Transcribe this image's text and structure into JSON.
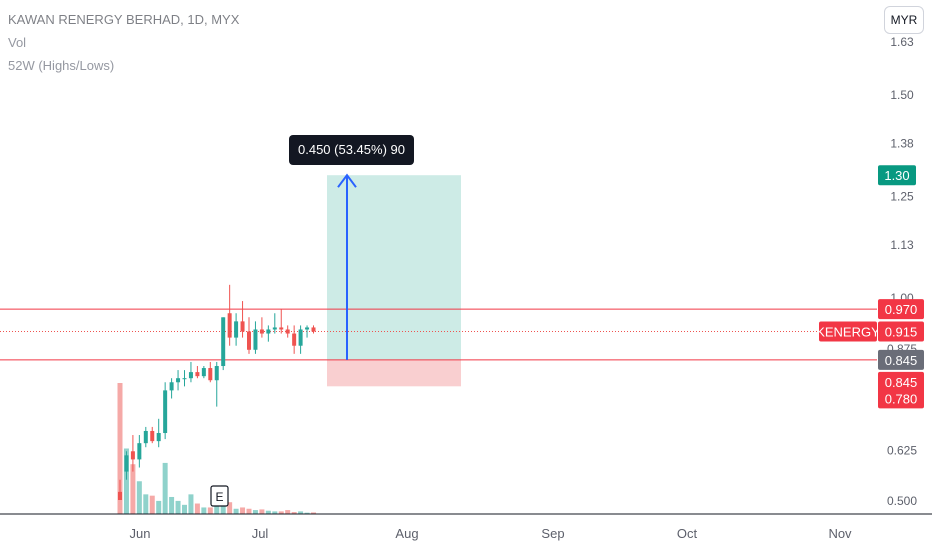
{
  "header": {
    "symbol_line": "KAWAN RENERGY BERHAD, 1D, MYX",
    "volume_label": "Vol",
    "highs_lows_label": "52W (Highs/Lows)"
  },
  "currency_button": "MYR",
  "position_tool": {
    "label": "0.450 (53.45%) 90",
    "entry": 0.845,
    "target": 1.3,
    "stop": 0.78
  },
  "price_labels": {
    "target": "1.30",
    "high_line": "0.970",
    "ticker": "KENERGY",
    "last": "0.915",
    "entry": "0.845",
    "entry_red": "0.845",
    "stop": "0.780"
  },
  "earnings_marker": "E",
  "colors": {
    "up": "#26a69a",
    "down": "#ef5350",
    "line_red": "#f23645",
    "arrow": "#2962ff",
    "target_zone": "#cdebe6",
    "stop_zone": "#f9cfd0"
  },
  "chart_data": {
    "type": "candlestick",
    "y_axis": {
      "ticks": [
        "0.500",
        "0.625",
        "0.750",
        "0.875",
        "1.00",
        "1.13",
        "1.25",
        "1.38",
        "1.50",
        "1.63"
      ],
      "range": [
        0.48,
        1.68
      ]
    },
    "x_axis": {
      "ticks": [
        "Jun",
        "Jul",
        "Aug",
        "Sep",
        "Oct",
        "Nov"
      ]
    },
    "horizontal_lines": [
      0.97,
      0.845
    ],
    "candles": [
      {
        "o": 0.52,
        "h": 0.55,
        "l": 0.5,
        "c": 0.5,
        "v": 1.0
      },
      {
        "o": 0.57,
        "h": 0.62,
        "l": 0.55,
        "c": 0.61,
        "v": 0.5
      },
      {
        "o": 0.62,
        "h": 0.66,
        "l": 0.57,
        "c": 0.6,
        "v": 0.38
      },
      {
        "o": 0.6,
        "h": 0.66,
        "l": 0.58,
        "c": 0.64,
        "v": 0.25
      },
      {
        "o": 0.64,
        "h": 0.68,
        "l": 0.63,
        "c": 0.67,
        "v": 0.15
      },
      {
        "o": 0.67,
        "h": 0.68,
        "l": 0.64,
        "c": 0.645,
        "v": 0.14
      },
      {
        "o": 0.645,
        "h": 0.7,
        "l": 0.63,
        "c": 0.665,
        "v": 0.1
      },
      {
        "o": 0.665,
        "h": 0.79,
        "l": 0.65,
        "c": 0.77,
        "v": 0.39
      },
      {
        "o": 0.77,
        "h": 0.8,
        "l": 0.75,
        "c": 0.79,
        "v": 0.13
      },
      {
        "o": 0.79,
        "h": 0.82,
        "l": 0.77,
        "c": 0.8,
        "v": 0.1
      },
      {
        "o": 0.8,
        "h": 0.82,
        "l": 0.78,
        "c": 0.8,
        "v": 0.07
      },
      {
        "o": 0.8,
        "h": 0.84,
        "l": 0.79,
        "c": 0.815,
        "v": 0.15
      },
      {
        "o": 0.815,
        "h": 0.83,
        "l": 0.8,
        "c": 0.805,
        "v": 0.08
      },
      {
        "o": 0.805,
        "h": 0.83,
        "l": 0.8,
        "c": 0.825,
        "v": 0.05
      },
      {
        "o": 0.825,
        "h": 0.84,
        "l": 0.79,
        "c": 0.795,
        "v": 0.05
      },
      {
        "o": 0.795,
        "h": 0.84,
        "l": 0.73,
        "c": 0.83,
        "v": 0.16
      },
      {
        "o": 0.83,
        "h": 0.95,
        "l": 0.82,
        "c": 0.95,
        "v": 0.12
      },
      {
        "o": 0.96,
        "h": 1.03,
        "l": 0.88,
        "c": 0.9,
        "v": 0.09
      },
      {
        "o": 0.9,
        "h": 0.96,
        "l": 0.88,
        "c": 0.94,
        "v": 0.04
      },
      {
        "o": 0.94,
        "h": 0.99,
        "l": 0.9,
        "c": 0.915,
        "v": 0.05
      },
      {
        "o": 0.915,
        "h": 0.95,
        "l": 0.86,
        "c": 0.87,
        "v": 0.04
      },
      {
        "o": 0.87,
        "h": 0.94,
        "l": 0.86,
        "c": 0.92,
        "v": 0.03
      },
      {
        "o": 0.92,
        "h": 0.95,
        "l": 0.9,
        "c": 0.91,
        "v": 0.035
      },
      {
        "o": 0.91,
        "h": 0.93,
        "l": 0.89,
        "c": 0.92,
        "v": 0.025
      },
      {
        "o": 0.92,
        "h": 0.96,
        "l": 0.91,
        "c": 0.925,
        "v": 0.02
      },
      {
        "o": 0.925,
        "h": 0.97,
        "l": 0.91,
        "c": 0.92,
        "v": 0.02
      },
      {
        "o": 0.92,
        "h": 0.93,
        "l": 0.9,
        "c": 0.91,
        "v": 0.03
      },
      {
        "o": 0.91,
        "h": 0.93,
        "l": 0.86,
        "c": 0.88,
        "v": 0.015
      },
      {
        "o": 0.88,
        "h": 0.93,
        "l": 0.86,
        "c": 0.92,
        "v": 0.02
      },
      {
        "o": 0.92,
        "h": 0.93,
        "l": 0.9,
        "c": 0.925,
        "v": 0.01
      },
      {
        "o": 0.925,
        "h": 0.93,
        "l": 0.91,
        "c": 0.915,
        "v": 0.012
      }
    ]
  }
}
